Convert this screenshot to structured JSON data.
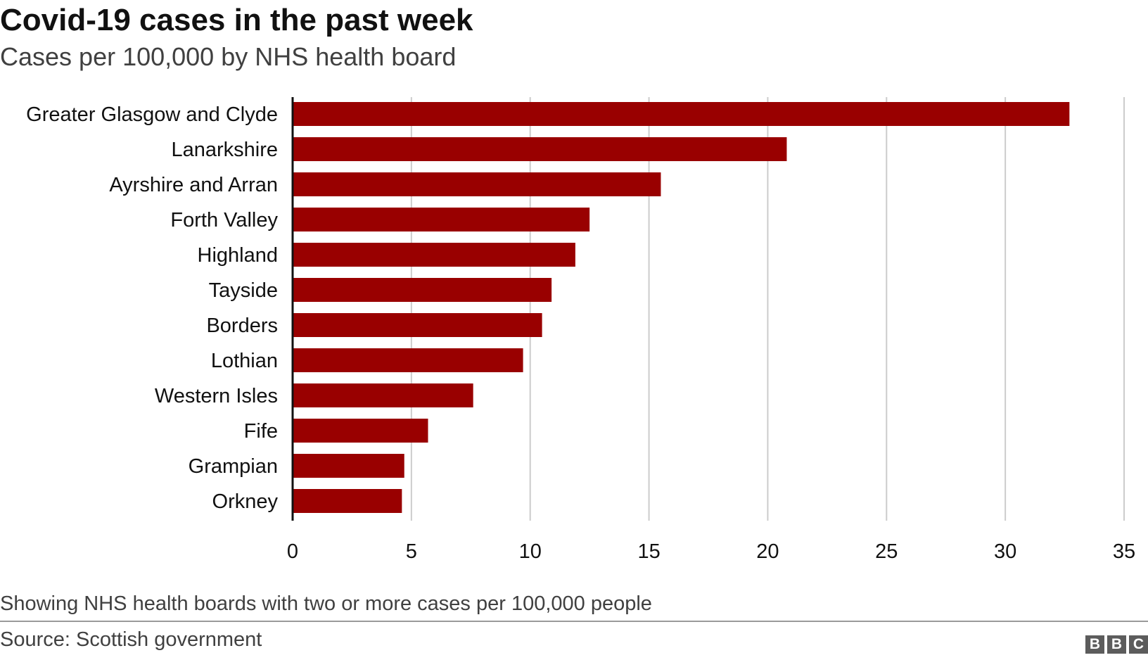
{
  "header": {
    "title": "Covid-19 cases in the past week",
    "subtitle": "Cases per 100,000 by NHS health board"
  },
  "footer": {
    "note": "Showing NHS health boards with two or more cases per 100,000 people",
    "source": "Source: Scottish government",
    "logo_letters": [
      "B",
      "B",
      "C"
    ]
  },
  "colors": {
    "bar": "#990000",
    "gridline": "#cccccc",
    "axis": "#111111"
  },
  "chart_data": {
    "type": "bar",
    "orientation": "horizontal",
    "title": "Covid-19 cases in the past week",
    "subtitle": "Cases per 100,000 by NHS health board",
    "categories": [
      "Greater Glasgow and Clyde",
      "Lanarkshire",
      "Ayrshire and Arran",
      "Forth Valley",
      "Highland",
      "Tayside",
      "Borders",
      "Lothian",
      "Western Isles",
      "Fife",
      "Grampian",
      "Orkney"
    ],
    "values": [
      32.7,
      20.8,
      15.5,
      12.5,
      11.9,
      10.9,
      10.5,
      9.7,
      7.6,
      5.7,
      4.7,
      4.6
    ],
    "xlim": [
      0,
      35
    ],
    "xticks": [
      0,
      5,
      10,
      15,
      20,
      25,
      30,
      35
    ],
    "grid": true,
    "legend": "none",
    "xlabel": "",
    "ylabel": ""
  }
}
